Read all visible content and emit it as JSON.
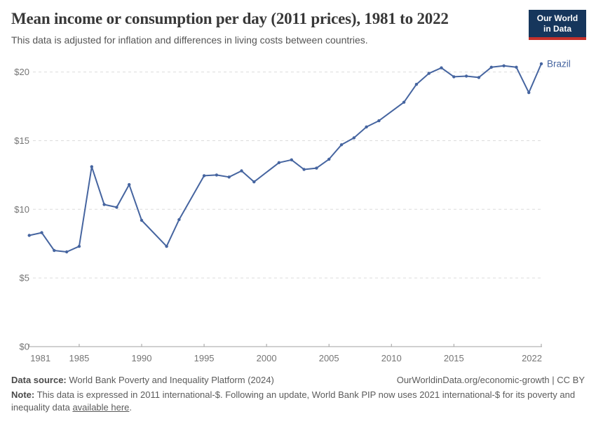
{
  "header": {
    "title": "Mean income or consumption per day (2011 prices), 1981 to 2022",
    "subtitle": "This data is adjusted for inflation and differences in living costs between countries.",
    "logo_line1": "Our World",
    "logo_line2": "in Data"
  },
  "chart_data": {
    "type": "line",
    "title": "Mean income or consumption per day (2011 prices), 1981 to 2022",
    "xlabel": "",
    "ylabel": "",
    "x_ticks": [
      1981,
      1985,
      1990,
      1995,
      2000,
      2005,
      2010,
      2015,
      2022
    ],
    "y_ticks": [
      0,
      5,
      10,
      15,
      20
    ],
    "y_prefix": "$",
    "xlim": [
      1981,
      2022
    ],
    "ylim": [
      0,
      20
    ],
    "grid": "horizontal-dashed",
    "legend_position": "line-end-label",
    "missing_years_interpolated": [
      1991,
      1994,
      2000,
      2010
    ],
    "series": [
      {
        "name": "Brazil",
        "points": [
          [
            1981,
            8.1
          ],
          [
            1982,
            8.3
          ],
          [
            1983,
            7.0
          ],
          [
            1984,
            6.9
          ],
          [
            1985,
            7.3
          ],
          [
            1986,
            13.1
          ],
          [
            1987,
            10.35
          ],
          [
            1988,
            10.15
          ],
          [
            1989,
            11.8
          ],
          [
            1990,
            9.2
          ],
          [
            1992,
            7.3
          ],
          [
            1993,
            9.25
          ],
          [
            1995,
            12.45
          ],
          [
            1996,
            12.5
          ],
          [
            1997,
            12.35
          ],
          [
            1998,
            12.8
          ],
          [
            1999,
            12.0
          ],
          [
            2001,
            13.4
          ],
          [
            2002,
            13.6
          ],
          [
            2003,
            12.9
          ],
          [
            2004,
            13.0
          ],
          [
            2005,
            13.65
          ],
          [
            2006,
            14.7
          ],
          [
            2007,
            15.2
          ],
          [
            2008,
            16.0
          ],
          [
            2009,
            16.45
          ],
          [
            2011,
            17.8
          ],
          [
            2012,
            19.1
          ],
          [
            2013,
            19.9
          ],
          [
            2014,
            20.3
          ],
          [
            2015,
            19.65
          ],
          [
            2016,
            19.7
          ],
          [
            2017,
            19.6
          ],
          [
            2018,
            20.35
          ],
          [
            2019,
            20.45
          ],
          [
            2020,
            20.35
          ],
          [
            2021,
            18.5
          ],
          [
            2022,
            20.6
          ]
        ]
      }
    ]
  },
  "colors": {
    "line": "#4665a0",
    "grid": "#dcdcdc",
    "axis": "#a0a0a0",
    "tick_text": "#757575",
    "logo_bg": "#16365c",
    "logo_red": "#c5312b"
  },
  "footer": {
    "source_label": "Data source:",
    "source_text": "World Bank Poverty and Inequality Platform (2024)",
    "attribution": "OurWorldinData.org/economic-growth | CC BY",
    "note_label": "Note:",
    "note_text": "This data is expressed in 2011 international-$. Following an update, World Bank PIP now uses 2021 international-$ for its poverty and inequality data ",
    "note_link": "available here",
    "note_suffix": "."
  }
}
